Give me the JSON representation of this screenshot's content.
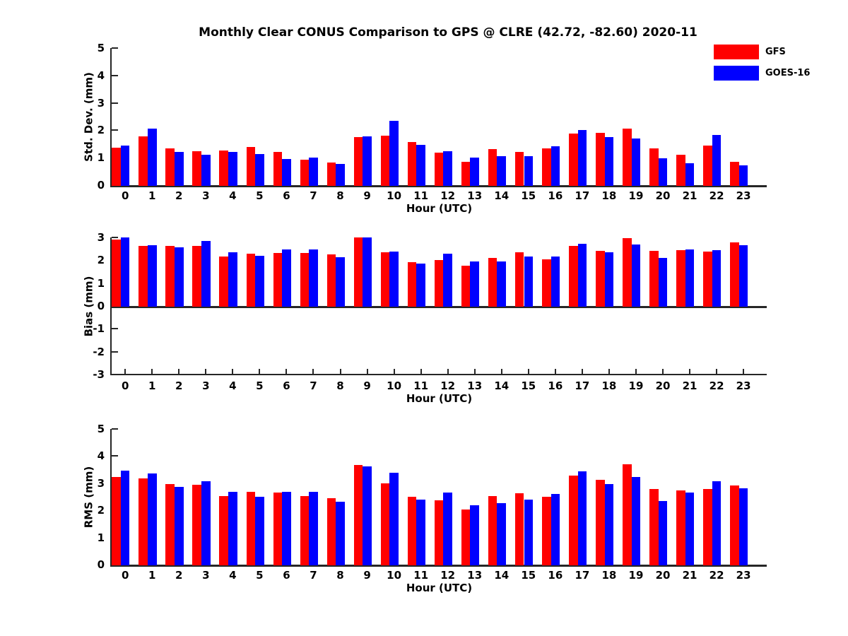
{
  "title": "Monthly Clear CONUS Comparison to GPS @ CLRE (42.72, -82.60) 2020-11",
  "colors": {
    "gfs_red": "#ff0000",
    "goes_blue": "#0000ff",
    "axis": "#262626",
    "text": "#000000"
  },
  "legend": {
    "position": "top-right",
    "items": [
      {
        "label": "GFS",
        "color": "#ff0000"
      },
      {
        "label": "GOES-16",
        "color": "#0000ff"
      }
    ]
  },
  "chart_data": [
    {
      "type": "bar",
      "panel": "std-dev",
      "ylabel": "Std. Dev. (mm)",
      "xlabel": "Hour (UTC)",
      "ylim": [
        0,
        5
      ],
      "yticks": [
        0,
        1,
        2,
        3,
        4,
        5
      ],
      "grid": false,
      "categories": [
        "0",
        "1",
        "2",
        "3",
        "4",
        "5",
        "6",
        "7",
        "8",
        "9",
        "10",
        "11",
        "12",
        "13",
        "14",
        "15",
        "16",
        "17",
        "18",
        "19",
        "20",
        "21",
        "22",
        "23"
      ],
      "series": [
        {
          "name": "GFS",
          "color": "#ff0000",
          "values": [
            1.36,
            1.78,
            1.33,
            1.23,
            1.27,
            1.38,
            1.21,
            0.93,
            0.82,
            1.75,
            1.8,
            1.58,
            1.18,
            0.86,
            1.32,
            1.2,
            1.35,
            1.88,
            1.91,
            2.06,
            1.35,
            1.1,
            1.44,
            0.85
          ]
        },
        {
          "name": "GOES-16",
          "color": "#0000ff",
          "values": [
            1.44,
            2.05,
            1.22,
            1.11,
            1.21,
            1.13,
            0.95,
            1.0,
            0.78,
            1.78,
            2.35,
            1.48,
            1.25,
            1.0,
            1.05,
            1.05,
            1.42,
            2.0,
            1.74,
            1.71,
            0.98,
            0.79,
            1.83,
            0.71
          ]
        }
      ]
    },
    {
      "type": "bar",
      "panel": "bias",
      "ylabel": "Bias (mm)",
      "xlabel": "Hour (UTC)",
      "ylim": [
        -3,
        3
      ],
      "yticks": [
        -3,
        -2,
        -1,
        0,
        1,
        2,
        3
      ],
      "grid": false,
      "categories": [
        "0",
        "1",
        "2",
        "3",
        "4",
        "5",
        "6",
        "7",
        "8",
        "9",
        "10",
        "11",
        "12",
        "13",
        "14",
        "15",
        "16",
        "17",
        "18",
        "19",
        "20",
        "21",
        "22",
        "23"
      ],
      "series": [
        {
          "name": "GFS",
          "color": "#ff0000",
          "values": [
            2.9,
            2.62,
            2.62,
            2.62,
            2.17,
            2.29,
            2.32,
            2.31,
            2.26,
            3.0,
            2.34,
            1.92,
            2.02,
            1.77,
            2.11,
            2.34,
            2.05,
            2.63,
            2.42,
            2.98,
            2.4,
            2.45,
            2.37,
            2.77
          ]
        },
        {
          "name": "GOES-16",
          "color": "#0000ff",
          "values": [
            3.0,
            2.65,
            2.58,
            2.85,
            2.36,
            2.19,
            2.48,
            2.48,
            2.13,
            3.0,
            2.38,
            1.87,
            2.3,
            1.94,
            1.94,
            2.16,
            2.16,
            2.73,
            2.36,
            2.7,
            2.09,
            2.48,
            2.44,
            2.65
          ]
        }
      ]
    },
    {
      "type": "bar",
      "panel": "rms",
      "ylabel": "RMS (mm)",
      "xlabel": "Hour (UTC)",
      "ylim": [
        0,
        5
      ],
      "yticks": [
        0,
        1,
        2,
        3,
        4,
        5
      ],
      "grid": false,
      "categories": [
        "0",
        "1",
        "2",
        "3",
        "4",
        "5",
        "6",
        "7",
        "8",
        "9",
        "10",
        "11",
        "12",
        "13",
        "14",
        "15",
        "16",
        "17",
        "18",
        "19",
        "20",
        "21",
        "22",
        "23"
      ],
      "series": [
        {
          "name": "GFS",
          "color": "#ff0000",
          "values": [
            3.24,
            3.19,
            2.98,
            2.93,
            2.53,
            2.69,
            2.65,
            2.53,
            2.44,
            3.67,
            3.0,
            2.51,
            2.37,
            2.02,
            2.53,
            2.63,
            2.5,
            3.28,
            3.12,
            3.71,
            2.79,
            2.74,
            2.79,
            2.92
          ]
        },
        {
          "name": "GOES-16",
          "color": "#0000ff",
          "values": [
            3.47,
            3.37,
            2.87,
            3.06,
            2.67,
            2.49,
            2.67,
            2.69,
            2.33,
            3.62,
            3.38,
            2.4,
            2.66,
            2.18,
            2.26,
            2.4,
            2.61,
            3.45,
            2.98,
            3.24,
            2.35,
            2.65,
            3.08,
            2.8
          ]
        }
      ]
    }
  ]
}
